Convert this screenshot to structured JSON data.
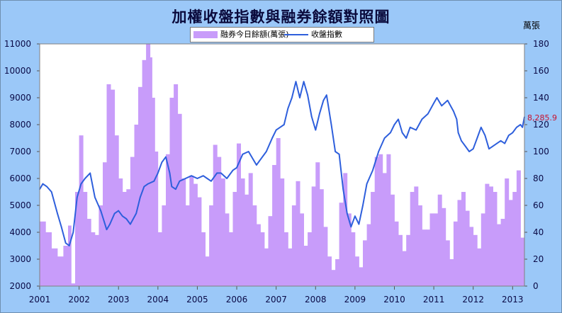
{
  "chart_data": {
    "type": "bar+line",
    "title": "加權收盤指數與融券餘額對照圖",
    "right_axis_unit": "萬張",
    "legend": {
      "placement": "top-center",
      "entries": [
        "融券今日餘額(萬張)",
        "收盤指數"
      ]
    },
    "last_value_label": "8,285.9",
    "x_ticks": [
      "2001",
      "2002",
      "2003",
      "2004",
      "2005",
      "2006",
      "2007",
      "2008",
      "2009",
      "2010",
      "2011",
      "2012",
      "2013"
    ],
    "y_left_ticks": [
      "2000",
      "3000",
      "4000",
      "5000",
      "6000",
      "7000",
      "8000",
      "9000",
      "10000",
      "11000"
    ],
    "y_right_ticks": [
      "0",
      "20",
      "40",
      "60",
      "80",
      "100",
      "120",
      "140",
      "160",
      "180"
    ],
    "x_range": [
      2001.0,
      2013.3
    ],
    "y_left_range": [
      2000,
      11000
    ],
    "y_right_range": [
      0,
      180
    ],
    "grid": false,
    "series": [
      {
        "name": "融券今日餘額(萬張)",
        "axis": "right",
        "type": "area",
        "color": "#c89cfa",
        "x": [
          2001.0,
          2001.15,
          2001.3,
          2001.45,
          2001.6,
          2001.72,
          2001.8,
          2001.9,
          2002.0,
          2002.1,
          2002.2,
          2002.3,
          2002.4,
          2002.5,
          2002.6,
          2002.7,
          2002.8,
          2002.9,
          2003.0,
          2003.1,
          2003.2,
          2003.3,
          2003.4,
          2003.5,
          2003.6,
          2003.7,
          2003.8,
          2003.85,
          2003.92,
          2004.0,
          2004.1,
          2004.2,
          2004.3,
          2004.4,
          2004.5,
          2004.6,
          2004.7,
          2004.8,
          2004.9,
          2005.0,
          2005.1,
          2005.2,
          2005.3,
          2005.4,
          2005.5,
          2005.6,
          2005.7,
          2005.8,
          2005.9,
          2006.0,
          2006.1,
          2006.2,
          2006.3,
          2006.4,
          2006.5,
          2006.6,
          2006.7,
          2006.8,
          2006.9,
          2007.0,
          2007.1,
          2007.2,
          2007.3,
          2007.4,
          2007.5,
          2007.6,
          2007.7,
          2007.8,
          2007.9,
          2008.0,
          2008.1,
          2008.2,
          2008.3,
          2008.4,
          2008.5,
          2008.6,
          2008.7,
          2008.8,
          2008.9,
          2009.0,
          2009.1,
          2009.2,
          2009.3,
          2009.4,
          2009.5,
          2009.6,
          2009.7,
          2009.8,
          2009.9,
          2010.0,
          2010.1,
          2010.2,
          2010.3,
          2010.4,
          2010.5,
          2010.6,
          2010.7,
          2010.8,
          2010.9,
          2011.0,
          2011.1,
          2011.2,
          2011.3,
          2011.4,
          2011.5,
          2011.6,
          2011.7,
          2011.8,
          2011.9,
          2012.0,
          2012.1,
          2012.2,
          2012.3,
          2012.4,
          2012.5,
          2012.6,
          2012.7,
          2012.8,
          2012.9,
          2013.0,
          2013.1,
          2013.2,
          2013.3
        ],
        "values": [
          48,
          40,
          28,
          22,
          30,
          45,
          2,
          70,
          112,
          70,
          50,
          40,
          38,
          60,
          92,
          150,
          146,
          112,
          80,
          70,
          72,
          96,
          120,
          148,
          168,
          180,
          170,
          140,
          100,
          40,
          60,
          98,
          140,
          150,
          128,
          80,
          60,
          82,
          76,
          66,
          40,
          22,
          60,
          105,
          96,
          80,
          54,
          40,
          70,
          106,
          80,
          68,
          84,
          60,
          46,
          40,
          28,
          52,
          90,
          110,
          80,
          40,
          28,
          60,
          78,
          54,
          30,
          40,
          74,
          92,
          72,
          44,
          22,
          12,
          20,
          62,
          84,
          54,
          40,
          22,
          14,
          34,
          46,
          70,
          96,
          98,
          84,
          98,
          68,
          48,
          38,
          26,
          38,
          70,
          74,
          60,
          42,
          42,
          54,
          54,
          68,
          58,
          34,
          20,
          48,
          64,
          70,
          56,
          44,
          38,
          28,
          54,
          76,
          74,
          70,
          46,
          50,
          80,
          64,
          70,
          86,
          36,
          12
        ]
      },
      {
        "name": "收盤指數",
        "axis": "left",
        "type": "line",
        "color": "#2e5fdc",
        "x": [
          2001.0,
          2001.08,
          2001.18,
          2001.3,
          2001.45,
          2001.55,
          2001.66,
          2001.75,
          2001.85,
          2001.95,
          2002.05,
          2002.15,
          2002.28,
          2002.4,
          2002.55,
          2002.7,
          2002.78,
          2002.9,
          2003.0,
          2003.1,
          2003.2,
          2003.3,
          2003.45,
          2003.55,
          2003.65,
          2003.75,
          2003.9,
          2004.0,
          2004.1,
          2004.2,
          2004.3,
          2004.35,
          2004.45,
          2004.55,
          2004.7,
          2004.85,
          2005.0,
          2005.15,
          2005.25,
          2005.35,
          2005.5,
          2005.6,
          2005.75,
          2005.9,
          2006.0,
          2006.15,
          2006.3,
          2006.42,
          2006.5,
          2006.6,
          2006.75,
          2006.9,
          2007.0,
          2007.1,
          2007.2,
          2007.3,
          2007.4,
          2007.5,
          2007.6,
          2007.7,
          2007.8,
          2007.9,
          2008.0,
          2008.1,
          2008.2,
          2008.28,
          2008.4,
          2008.5,
          2008.6,
          2008.7,
          2008.8,
          2008.9,
          2009.0,
          2009.1,
          2009.2,
          2009.3,
          2009.45,
          2009.6,
          2009.75,
          2009.9,
          2010.0,
          2010.1,
          2010.2,
          2010.3,
          2010.4,
          2010.55,
          2010.7,
          2010.85,
          2011.0,
          2011.08,
          2011.2,
          2011.35,
          2011.5,
          2011.58,
          2011.62,
          2011.7,
          2011.8,
          2011.9,
          2012.0,
          2012.1,
          2012.2,
          2012.3,
          2012.4,
          2012.5,
          2012.6,
          2012.7,
          2012.8,
          2012.9,
          2013.0,
          2013.1,
          2013.2,
          2013.25,
          2013.3
        ],
        "values": [
          5600,
          5800,
          5700,
          5500,
          4700,
          4200,
          3600,
          3500,
          4000,
          5300,
          5800,
          6000,
          6200,
          5300,
          4800,
          4100,
          4300,
          4700,
          4800,
          4600,
          4500,
          4300,
          4700,
          5300,
          5700,
          5800,
          5900,
          6200,
          6600,
          6800,
          6200,
          5700,
          5600,
          5900,
          6000,
          6100,
          6000,
          6100,
          6000,
          5900,
          6200,
          6200,
          6000,
          6300,
          6400,
          6900,
          7000,
          6700,
          6500,
          6700,
          7000,
          7500,
          7800,
          7900,
          8000,
          8600,
          9000,
          9600,
          9000,
          9600,
          9100,
          8300,
          7800,
          8400,
          8900,
          9100,
          8000,
          7000,
          6900,
          5600,
          4700,
          4200,
          4600,
          4300,
          5000,
          5800,
          6300,
          7000,
          7500,
          7700,
          8000,
          8200,
          7700,
          7500,
          7900,
          7800,
          8200,
          8400,
          8800,
          9000,
          8700,
          8900,
          8500,
          8200,
          7700,
          7400,
          7200,
          7000,
          7100,
          7500,
          7900,
          7600,
          7100,
          7200,
          7300,
          7400,
          7300,
          7600,
          7700,
          7900,
          8000,
          7900,
          8285.9
        ]
      }
    ]
  }
}
